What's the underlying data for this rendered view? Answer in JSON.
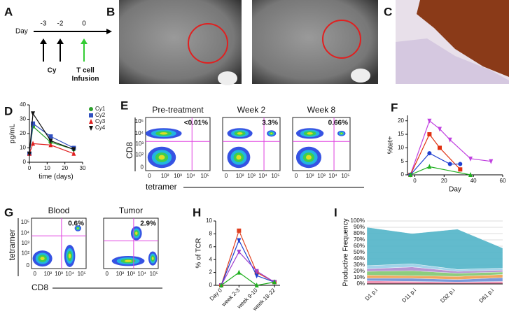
{
  "panel_labels": [
    "A",
    "B",
    "C",
    "D",
    "E",
    "F",
    "G",
    "H",
    "I"
  ],
  "timeline": {
    "label": "Day",
    "days": [
      "-3",
      "-2",
      "0"
    ],
    "agents": [
      "Cy",
      "T cell",
      "Infusion"
    ]
  },
  "flow_E": {
    "titles": [
      "Pre-treatment",
      "Week 2",
      "Week 8"
    ],
    "percents": [
      "<0.01%",
      "3.3%",
      "0.66%"
    ],
    "ylabel": "CD8",
    "xlabel": "tetramer",
    "ticks": [
      "0",
      "10²",
      "10³",
      "10⁴",
      "10⁵"
    ]
  },
  "flow_G": {
    "titles": [
      "Blood",
      "Tumor"
    ],
    "percents": [
      "0.6%",
      "2.9%"
    ],
    "ylabel": "tetramer",
    "xlabel": "CD8",
    "ticks": [
      "0",
      "10²",
      "10³",
      "10⁴",
      "10⁵"
    ]
  },
  "chart_data": [
    {
      "type": "line",
      "ylabel": "pg/mL",
      "xlabel": "time (days)",
      "x": [
        0,
        2,
        12,
        25
      ],
      "xlim": [
        0,
        30
      ],
      "ylim": [
        0,
        40
      ],
      "xticks": [
        0,
        10,
        20,
        30
      ],
      "yticks": [
        0,
        10,
        20,
        30,
        40
      ],
      "legend": "right",
      "series": [
        {
          "name": "Cy1",
          "color": "#2ca02c",
          "marker": "circle",
          "values": [
            6,
            25,
            14,
            9
          ]
        },
        {
          "name": "Cy2",
          "color": "#3050c0",
          "marker": "square",
          "values": [
            6,
            27,
            18,
            10
          ]
        },
        {
          "name": "Cy3",
          "color": "#e02020",
          "marker": "triangle",
          "values": [
            6,
            13,
            12,
            6
          ]
        },
        {
          "name": "Cy4",
          "color": "#111111",
          "marker": "triangle-down",
          "values": [
            6,
            34,
            15,
            9
          ]
        }
      ]
    },
    {
      "type": "line",
      "ylabel": "%tet+",
      "xlabel": "Day",
      "xlim": [
        -5,
        60
      ],
      "ylim": [
        0,
        22
      ],
      "xticks": [
        0,
        20,
        40,
        60
      ],
      "yticks": [
        0,
        5,
        10,
        15,
        20
      ],
      "series": [
        {
          "color": "#c040e0",
          "marker": "triangle-down",
          "x": [
            -3,
            10,
            17,
            24,
            38,
            52
          ],
          "values": [
            0,
            20,
            17,
            13,
            6,
            5
          ]
        },
        {
          "color": "#e03010",
          "marker": "square",
          "x": [
            -3,
            10,
            17,
            31
          ],
          "values": [
            0,
            15,
            10,
            2
          ]
        },
        {
          "color": "#2040d0",
          "marker": "circle",
          "x": [
            -3,
            10,
            24,
            31
          ],
          "values": [
            0,
            8,
            4,
            4
          ]
        },
        {
          "color": "#20b020",
          "marker": "triangle",
          "x": [
            -3,
            10,
            38
          ],
          "values": [
            0,
            3,
            0
          ]
        }
      ]
    },
    {
      "type": "line",
      "ylabel": "% of TCR",
      "categories": [
        "Day 0",
        "week 2-3",
        "week 9-10",
        "week 18-22"
      ],
      "ylim": [
        0,
        10
      ],
      "yticks": [
        0,
        2,
        4,
        6,
        8,
        10
      ],
      "series": [
        {
          "color": "#e04020",
          "marker": "square",
          "values": [
            0,
            8.5,
            2,
            0.5
          ]
        },
        {
          "color": "#2040d0",
          "marker": "triangle-down",
          "values": [
            0,
            7,
            1.5,
            0.5
          ]
        },
        {
          "color": "#a040d0",
          "marker": "triangle-down",
          "values": [
            0,
            5.2,
            2.2,
            0.5
          ]
        },
        {
          "color": "#20b020",
          "marker": "triangle",
          "values": [
            0,
            2,
            0,
            0.5
          ]
        }
      ]
    },
    {
      "type": "area",
      "stacked": true,
      "grid": true,
      "ylabel": "Productive Frequency",
      "categories": [
        "D1 p.i",
        "D11 p.i",
        "D32 p.i",
        "D61 p.i"
      ],
      "ylim": [
        0,
        100
      ],
      "yticks": [
        {
          "value": 0,
          "label": "0%"
        },
        {
          "value": 10,
          "label": "10%"
        },
        {
          "value": 20,
          "label": "20%"
        },
        {
          "value": 30,
          "label": "30%"
        },
        {
          "value": 40,
          "label": "40%"
        },
        {
          "value": 50,
          "label": "50%"
        },
        {
          "value": 60,
          "label": "60%"
        },
        {
          "value": 70,
          "label": "70%"
        },
        {
          "value": 80,
          "label": "80%"
        },
        {
          "value": 90,
          "label": "90%"
        },
        {
          "value": 100,
          "label": "100%"
        }
      ],
      "series": [
        {
          "color": "#f08cb0",
          "values": [
            5,
            4,
            3,
            4
          ]
        },
        {
          "color": "#6c8fd8",
          "values": [
            4,
            5,
            4,
            6
          ]
        },
        {
          "color": "#f0a050",
          "values": [
            5,
            4,
            5,
            5
          ]
        },
        {
          "color": "#80c870",
          "values": [
            6,
            8,
            5,
            4
          ]
        },
        {
          "color": "#b08ad0",
          "values": [
            4,
            6,
            3,
            3
          ]
        },
        {
          "color": "#9ad0e8",
          "values": [
            5,
            5,
            3,
            3
          ]
        },
        {
          "color": "#52b4c8",
          "values": [
            61,
            48,
            64,
            32
          ]
        }
      ]
    }
  ]
}
